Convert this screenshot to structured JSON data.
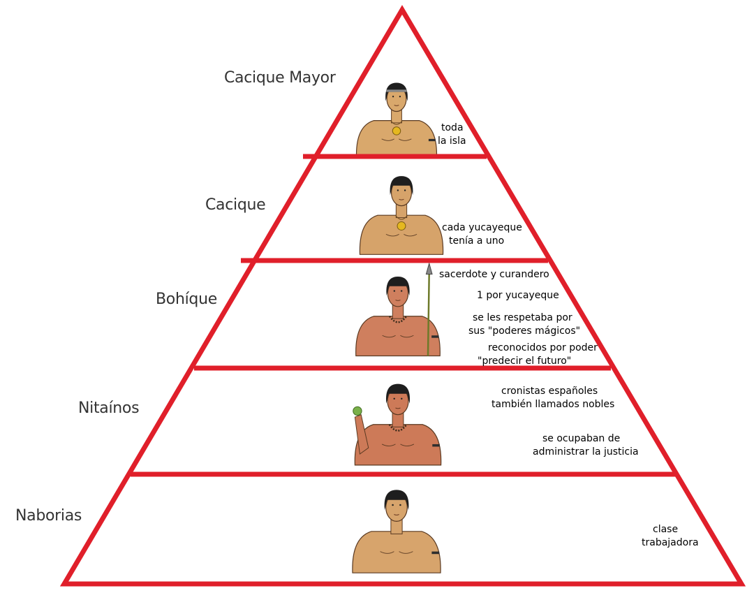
{
  "diagram": {
    "border_color": "#e01f2a",
    "levels": [
      {
        "name": "Cacique Mayor",
        "notes": [
          "toda",
          "la isla"
        ],
        "skin_color": "#d9a86c"
      },
      {
        "name": "Cacique",
        "notes": [
          "cada yucayeque",
          "tenía a uno"
        ],
        "skin_color": "#d6a36a"
      },
      {
        "name": "Bohíque",
        "notes": [
          "sacerdote y curandero",
          "1 por yucayeque",
          "se les respetaba por",
          "sus \"poderes mágicos\"",
          "reconocidos por poder",
          "\"predecir el futuro\""
        ],
        "skin_color": "#cf7f5e"
      },
      {
        "name": "Nitaínos",
        "notes": [
          "cronistas españoles",
          "también llamados nobles",
          "se ocupaban de",
          "administrar la justicia"
        ],
        "skin_color": "#cd7a58"
      },
      {
        "name": "Naborias",
        "notes": [
          "clase",
          "trabajadora"
        ],
        "skin_color": "#d7a46c"
      }
    ]
  }
}
